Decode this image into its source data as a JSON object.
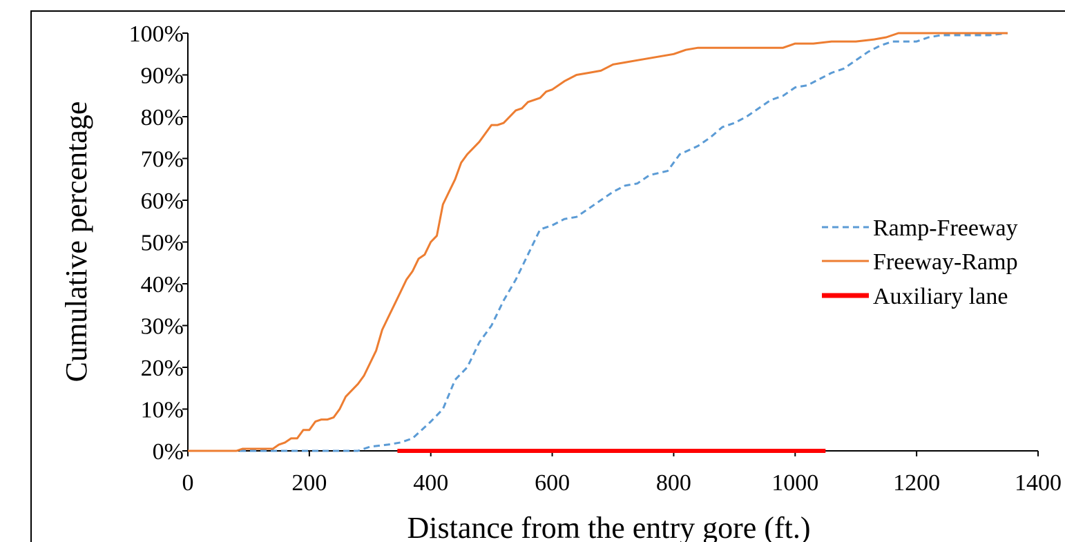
{
  "chart_data": {
    "type": "line",
    "title": "",
    "xlabel": "Distance from the entry gore (ft.)",
    "ylabel": "Cumulative percentage",
    "xlim": [
      0,
      1400
    ],
    "ylim": [
      0,
      100
    ],
    "x_ticks": [
      0,
      200,
      400,
      600,
      800,
      1000,
      1200,
      1400
    ],
    "x_tick_labels": [
      "0",
      "200",
      "400",
      "600",
      "800",
      "1000",
      "1200",
      "1400"
    ],
    "y_ticks": [
      0,
      10,
      20,
      30,
      40,
      50,
      60,
      70,
      80,
      90,
      100
    ],
    "y_tick_labels": [
      "0%",
      "10%",
      "20%",
      "30%",
      "40%",
      "50%",
      "60%",
      "70%",
      "80%",
      "90%",
      "100%"
    ],
    "grid": false,
    "legend_position": "right",
    "series": [
      {
        "name": "Ramp-Freeway",
        "color": "#5B9BD5",
        "style": "dashed",
        "x": [
          0,
          280,
          300,
          330,
          350,
          370,
          385,
          400,
          420,
          440,
          460,
          480,
          500,
          520,
          540,
          560,
          580,
          600,
          620,
          640,
          660,
          680,
          700,
          720,
          740,
          760,
          790,
          810,
          840,
          860,
          880,
          900,
          920,
          940,
          960,
          980,
          1000,
          1020,
          1040,
          1060,
          1080,
          1100,
          1120,
          1140,
          1160,
          1180,
          1200,
          1220,
          1240,
          1260,
          1280,
          1300,
          1320,
          1350
        ],
        "y": [
          0,
          0,
          1,
          1.5,
          2,
          3,
          5,
          7,
          10,
          17,
          20,
          26,
          30,
          36,
          41,
          47,
          53,
          54,
          55.5,
          56,
          58,
          60,
          62,
          63.5,
          64,
          66,
          67,
          71,
          73,
          75,
          77.5,
          78.5,
          80,
          82,
          84,
          85,
          87,
          87.5,
          89,
          90.5,
          91.5,
          93.5,
          95.5,
          97,
          98,
          98,
          98,
          99,
          99.5,
          99.5,
          99.5,
          99.5,
          99.5,
          100
        ]
      },
      {
        "name": "Freeway-Ramp",
        "color": "#ED7D31",
        "style": "solid",
        "x": [
          0,
          80,
          90,
          140,
          150,
          160,
          170,
          180,
          190,
          200,
          210,
          220,
          230,
          240,
          250,
          260,
          270,
          280,
          290,
          300,
          310,
          320,
          330,
          340,
          350,
          360,
          370,
          380,
          390,
          400,
          410,
          420,
          430,
          440,
          450,
          460,
          470,
          480,
          490,
          500,
          510,
          520,
          530,
          540,
          550,
          560,
          570,
          580,
          590,
          600,
          620,
          640,
          660,
          680,
          700,
          720,
          740,
          760,
          780,
          800,
          820,
          840,
          860,
          900,
          950,
          980,
          1000,
          1030,
          1060,
          1100,
          1130,
          1150,
          1170,
          1200,
          1350
        ],
        "y": [
          0,
          0,
          0.5,
          0.5,
          1.5,
          2,
          3,
          3,
          5,
          5,
          7,
          7.5,
          7.5,
          8,
          10,
          13,
          14.5,
          16,
          18,
          21,
          24,
          29,
          32,
          35,
          38,
          41,
          43,
          46,
          47,
          50,
          51.5,
          59,
          62,
          65,
          69,
          71,
          72.5,
          74,
          76,
          78,
          78,
          78.5,
          80,
          81.5,
          82,
          83.5,
          84,
          84.5,
          86,
          86.5,
          88.5,
          90,
          90.5,
          91,
          92.5,
          93,
          93.5,
          94,
          94.5,
          95,
          96,
          96.5,
          96.5,
          96.5,
          96.5,
          96.5,
          97.5,
          97.5,
          98,
          98,
          98.5,
          99,
          100,
          100,
          100
        ]
      },
      {
        "name": "Auxiliary lane",
        "color": "#FF0000",
        "style": "solid-thick",
        "x": [
          345,
          1050
        ],
        "y": [
          0,
          0
        ]
      }
    ]
  }
}
